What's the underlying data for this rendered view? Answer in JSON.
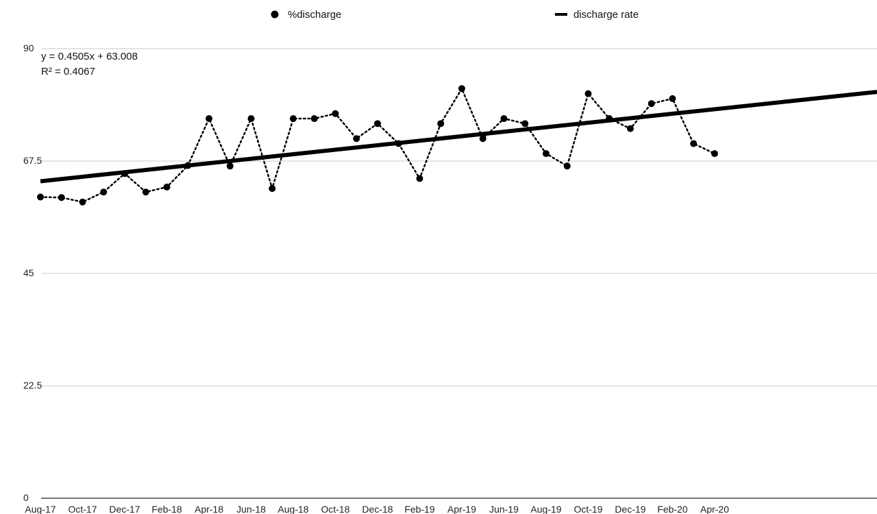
{
  "chart_data": {
    "type": "line",
    "title": "",
    "xlabel": "",
    "ylabel": "",
    "ylim": [
      0,
      90
    ],
    "yticks": [
      "0",
      "22.5",
      "45",
      "67.5",
      "90"
    ],
    "grid": true,
    "legend_position": "top",
    "x_tick_labels": [
      "Aug-17",
      "Oct-17",
      "Dec-17",
      "Feb-18",
      "Apr-18",
      "Jun-18",
      "Aug-18",
      "Oct-18",
      "Dec-18",
      "Feb-19",
      "Apr-19",
      "Jun-19",
      "Aug-19",
      "Oct-19",
      "Dec-19",
      "Feb-20",
      "Apr-20"
    ],
    "categories": [
      "Aug-17",
      "Sep-17",
      "Oct-17",
      "Nov-17",
      "Dec-17",
      "Jan-18",
      "Feb-18",
      "Mar-18",
      "Apr-18",
      "May-18",
      "Jun-18",
      "Jul-18",
      "Aug-18",
      "Sep-18",
      "Oct-18",
      "Nov-18",
      "Dec-18",
      "Jan-19",
      "Feb-19",
      "Mar-19",
      "Apr-19",
      "May-19",
      "Jun-19",
      "Jul-19",
      "Aug-19",
      "Sep-19",
      "Oct-19",
      "Nov-19",
      "Dec-19",
      "Jan-20",
      "Feb-20",
      "Mar-20",
      "Apr-20"
    ],
    "series": [
      {
        "name": "%discharge",
        "style": "dotted-line-with-markers",
        "color": "#000000",
        "values": [
          60.3,
          60.2,
          59.3,
          61.3,
          65.0,
          61.3,
          62.3,
          66.6,
          76.0,
          66.5,
          76.0,
          62.0,
          76.0,
          76.0,
          77.0,
          72.0,
          75.0,
          71.0,
          64.0,
          75.0,
          82.0,
          72.0,
          76.0,
          75.0,
          69.0,
          66.5,
          81.0,
          76.0,
          74.0,
          79.0,
          80.0,
          71.0,
          69.0
        ]
      }
    ],
    "trendline": {
      "name": "discharge rate",
      "color": "#000000",
      "slope": 0.4505,
      "intercept": 63.008,
      "equation": "y = 0.4505x + 63.008",
      "r_squared": "R² = 0.4067"
    }
  }
}
